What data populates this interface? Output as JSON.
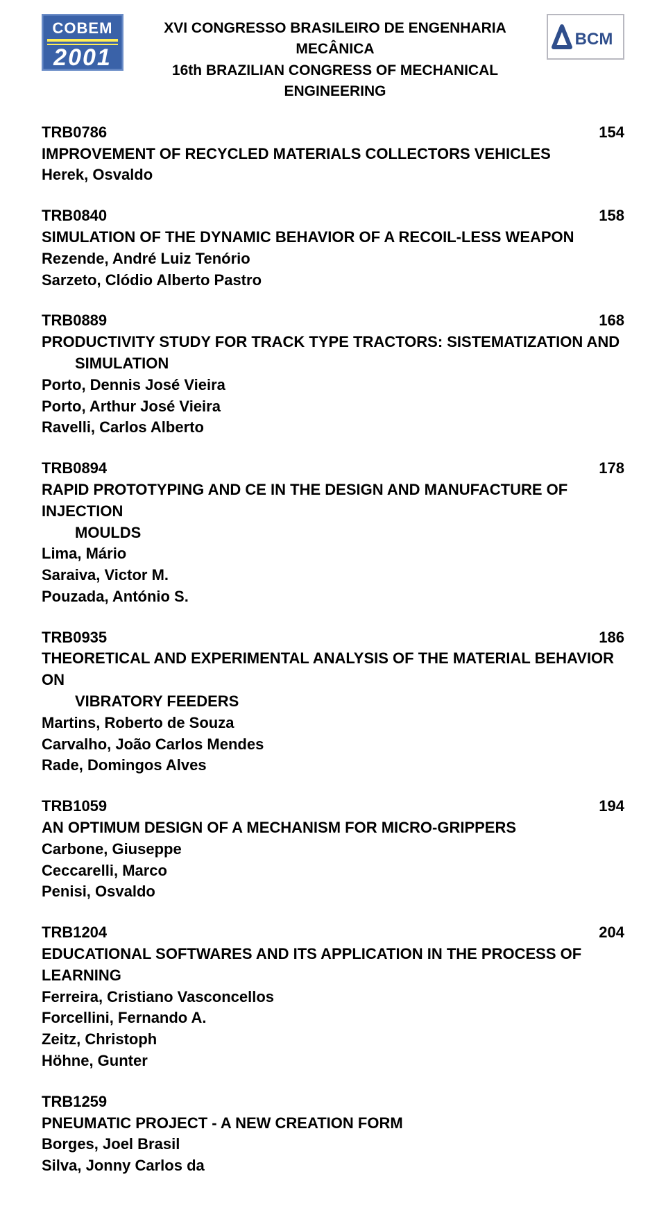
{
  "header": {
    "line1": "XVI CONGRESSO BRASILEIRO DE ENGENHARIA MECÂNICA",
    "line2": "16th BRAZILIAN CONGRESS OF MECHANICAL ENGINEERING",
    "cobem_logo": {
      "top_text": "COBEM",
      "year": "2001",
      "bg_color": "#3a62a8",
      "accent_color": "#ffee55",
      "text_color": "#ffffff",
      "border_color": "#6a8cc7"
    },
    "abcm_logo": {
      "text": "ABCM",
      "text_color": "#2f4e8c",
      "bg_color": "#ffffff",
      "border_color": "#b8b8c0"
    }
  },
  "entries": [
    {
      "code": "TRB0786",
      "page": "154",
      "title_lines": [
        "IMPROVEMENT OF RECYCLED MATERIALS COLLECTORS VEHICLES"
      ],
      "authors": [
        "Herek, Osvaldo"
      ]
    },
    {
      "code": "TRB0840",
      "page": "158",
      "title_lines": [
        "SIMULATION OF THE DYNAMIC BEHAVIOR OF A RECOIL-LESS WEAPON"
      ],
      "authors": [
        "Rezende, André Luiz Tenório",
        "Sarzeto, Clódio Alberto Pastro"
      ]
    },
    {
      "code": "TRB0889",
      "page": "168",
      "title_lines": [
        "PRODUCTIVITY STUDY FOR TRACK TYPE TRACTORS: SISTEMATIZATION AND",
        "SIMULATION"
      ],
      "authors": [
        "Porto, Dennis José Vieira",
        "Porto, Arthur José Vieira",
        "Ravelli, Carlos Alberto"
      ]
    },
    {
      "code": "TRB0894",
      "page": "178",
      "title_lines": [
        "RAPID PROTOTYPING AND CE IN THE DESIGN AND MANUFACTURE OF INJECTION",
        "MOULDS"
      ],
      "authors": [
        "Lima, Mário",
        "Saraiva, Victor M.",
        "Pouzada, António S."
      ]
    },
    {
      "code": "TRB0935",
      "page": "186",
      "title_lines": [
        "THEORETICAL AND EXPERIMENTAL ANALYSIS OF THE MATERIAL BEHAVIOR ON",
        "VIBRATORY FEEDERS"
      ],
      "authors": [
        "Martins, Roberto de Souza",
        "Carvalho, João Carlos Mendes",
        "Rade, Domingos Alves"
      ]
    },
    {
      "code": "TRB1059",
      "page": "194",
      "title_lines": [
        "AN OPTIMUM DESIGN OF A MECHANISM FOR MICRO-GRIPPERS"
      ],
      "authors": [
        "Carbone, Giuseppe",
        "Ceccarelli, Marco",
        "Penisi, Osvaldo"
      ]
    },
    {
      "code": "TRB1204",
      "page": "204",
      "title_lines": [
        "EDUCATIONAL SOFTWARES AND ITS APPLICATION IN THE PROCESS OF LEARNING"
      ],
      "authors": [
        "Ferreira, Cristiano Vasconcellos",
        "Forcellini, Fernando A.",
        "Zeitz, Christoph",
        "Höhne, Gunter"
      ]
    },
    {
      "code": "TRB1259",
      "page": "",
      "title_lines": [
        "PNEUMATIC PROJECT - A NEW CREATION FORM"
      ],
      "authors": [
        "Borges, Joel Brasil",
        "Silva, Jonny Carlos da"
      ]
    }
  ]
}
